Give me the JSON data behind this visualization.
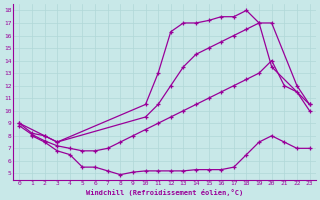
{
  "xlabel": "Windchill (Refroidissement éolien,°C)",
  "background_color": "#c8e8e8",
  "grid_color": "#b0d8d8",
  "line_color": "#990099",
  "xlim": [
    -0.5,
    23.5
  ],
  "ylim": [
    4.5,
    18.5
  ],
  "xticks": [
    0,
    1,
    2,
    3,
    4,
    5,
    6,
    7,
    8,
    9,
    10,
    11,
    12,
    13,
    14,
    15,
    16,
    17,
    18,
    19,
    20,
    21,
    22,
    23
  ],
  "yticks": [
    5,
    6,
    7,
    8,
    9,
    10,
    11,
    12,
    13,
    14,
    15,
    16,
    17,
    18
  ],
  "lines": [
    {
      "x": [
        0,
        2,
        3,
        10,
        11,
        12,
        13,
        14,
        15,
        16,
        17,
        18,
        19,
        20,
        23
      ],
      "y": [
        9,
        8,
        7.5,
        10.5,
        13,
        16.3,
        17,
        17,
        17.2,
        17.5,
        17.5,
        18,
        17,
        13.5,
        10.5
      ]
    },
    {
      "x": [
        0,
        1,
        2,
        3,
        10,
        11,
        12,
        13,
        14,
        15,
        16,
        17,
        18,
        19,
        20,
        22,
        23
      ],
      "y": [
        9,
        8.2,
        8,
        7.5,
        9.5,
        10.5,
        12,
        13.5,
        14.5,
        15,
        15.5,
        16,
        16.5,
        17,
        17,
        12,
        10.5
      ]
    },
    {
      "x": [
        0,
        1,
        2,
        3,
        4,
        5,
        6,
        7,
        8,
        9,
        10,
        11,
        12,
        13,
        14,
        15,
        16,
        17,
        18,
        19,
        20,
        21,
        22,
        23
      ],
      "y": [
        8.8,
        8.1,
        7.6,
        7.2,
        7.0,
        6.8,
        6.8,
        7.0,
        7.5,
        8.0,
        8.5,
        9.0,
        9.5,
        10.0,
        10.5,
        11.0,
        11.5,
        12.0,
        12.5,
        13.0,
        14.0,
        12.0,
        11.5,
        10.0
      ]
    },
    {
      "x": [
        1,
        2,
        3,
        4,
        5,
        6,
        7,
        8,
        9,
        10,
        11,
        12,
        13,
        14,
        15,
        16,
        17,
        18,
        19,
        20,
        21,
        22,
        23
      ],
      "y": [
        8.0,
        7.5,
        6.8,
        6.5,
        5.5,
        5.5,
        5.2,
        4.9,
        5.1,
        5.2,
        5.2,
        5.2,
        5.2,
        5.3,
        5.3,
        5.3,
        5.5,
        6.5,
        7.5,
        8.0,
        7.5,
        7.0,
        7.0
      ]
    }
  ]
}
